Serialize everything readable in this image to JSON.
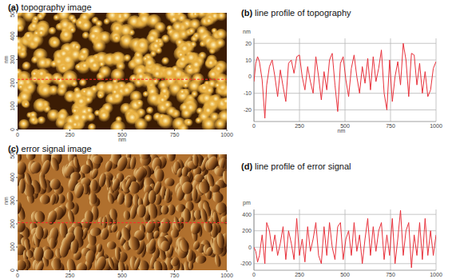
{
  "chart_data": [
    {
      "type": "image",
      "title": "(a) topography image",
      "xlabel": "nm",
      "ylabel": "nm",
      "xlim": [
        0,
        1000
      ],
      "ylim": [
        0,
        500
      ],
      "xticks": [
        0,
        250,
        500,
        750,
        1000
      ],
      "yticks": [
        0,
        100,
        200,
        300,
        400,
        500
      ],
      "profile_y": 215,
      "color": "#e8b040"
    },
    {
      "type": "line",
      "title": "(b) line profile of topography",
      "xlabel": "nm",
      "ylabel": "nm",
      "x": [
        0,
        10,
        20,
        30,
        45,
        60,
        70,
        85,
        100,
        115,
        130,
        145,
        160,
        175,
        190,
        205,
        220,
        235,
        250,
        265,
        280,
        295,
        310,
        325,
        340,
        355,
        370,
        385,
        400,
        415,
        430,
        445,
        460,
        475,
        490,
        505,
        520,
        535,
        550,
        565,
        580,
        595,
        610,
        625,
        640,
        655,
        670,
        685,
        700,
        715,
        730,
        745,
        760,
        775,
        790,
        805,
        820,
        835,
        850,
        865,
        880,
        895,
        910,
        925,
        940,
        955,
        970,
        985,
        1000
      ],
      "series": [
        {
          "name": null,
          "color": "#e8303a",
          "values": [
            -3,
            8,
            12,
            9,
            -2,
            -25,
            -5,
            6,
            10,
            0,
            -12,
            4,
            -6,
            -15,
            8,
            10,
            2,
            12,
            13,
            0,
            -8,
            6,
            -3,
            -10,
            12,
            0,
            -14,
            3,
            -8,
            10,
            14,
            -5,
            -21,
            8,
            12,
            -2,
            -12,
            5,
            13,
            0,
            -10,
            6,
            -4,
            11,
            -8,
            12,
            -3,
            5,
            16,
            -10,
            -20,
            10,
            -15,
            0,
            9,
            -5,
            20,
            10,
            -12,
            14,
            13,
            -5,
            8,
            -10,
            3,
            -12,
            -8,
            5,
            9
          ]
        }
      ],
      "xlim": [
        0,
        1000
      ],
      "ylim": [
        -27,
        23
      ],
      "xticks": [
        0,
        250,
        500,
        750,
        1000
      ],
      "yticks": [
        20,
        10,
        0,
        -10,
        -20
      ],
      "grid": true
    },
    {
      "type": "image",
      "title": "(c) error signal image",
      "ylabel": "nm",
      "xlim": [
        0,
        1000
      ],
      "ylim": [
        0,
        500
      ],
      "xticks": [
        0,
        250,
        500,
        750,
        1000
      ],
      "yticks": [
        0,
        100,
        200,
        300,
        400,
        500
      ],
      "profile_y": 205,
      "color": "#b0702e"
    },
    {
      "type": "line",
      "title": "(d) line profile of error signal",
      "ylabel": "pm",
      "x": [
        0,
        10,
        20,
        30,
        45,
        60,
        70,
        85,
        100,
        115,
        130,
        145,
        160,
        175,
        190,
        205,
        220,
        235,
        250,
        265,
        280,
        295,
        310,
        325,
        340,
        355,
        370,
        385,
        400,
        415,
        430,
        445,
        460,
        475,
        490,
        505,
        520,
        535,
        550,
        565,
        580,
        595,
        610,
        625,
        640,
        655,
        670,
        685,
        700,
        715,
        730,
        745,
        760,
        775,
        790,
        805,
        820,
        835,
        850,
        865,
        880,
        895,
        910,
        925,
        940,
        955,
        970,
        985,
        1000
      ],
      "series": [
        {
          "name": null,
          "color": "#e8303a",
          "values": [
            0,
            -50,
            -180,
            -100,
            150,
            -200,
            300,
            200,
            -50,
            150,
            -100,
            50,
            250,
            -150,
            200,
            50,
            -150,
            350,
            -100,
            100,
            -180,
            250,
            -50,
            100,
            300,
            -100,
            -200,
            250,
            -100,
            300,
            0,
            -150,
            250,
            300,
            -150,
            100,
            200,
            -100,
            300,
            -50,
            150,
            -200,
            100,
            350,
            -100,
            250,
            -50,
            200,
            300,
            -150,
            150,
            -100,
            350,
            -200,
            100,
            450,
            -100,
            200,
            300,
            -250,
            150,
            -100,
            300,
            -150,
            350,
            -100,
            200,
            -100,
            150
          ]
        }
      ],
      "xlim": [
        0,
        1000
      ],
      "ylim": [
        -280,
        460
      ],
      "xticks": [
        0,
        250,
        500,
        750,
        1000
      ],
      "yticks": [
        400,
        200,
        0,
        -200
      ],
      "grid": true
    }
  ]
}
